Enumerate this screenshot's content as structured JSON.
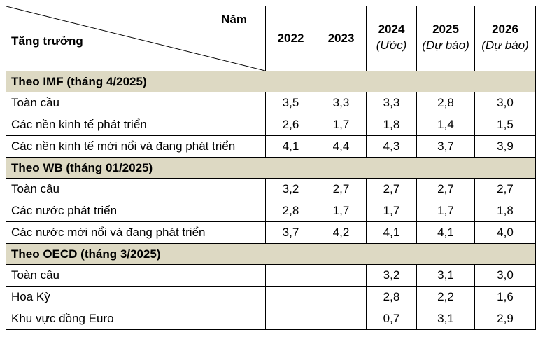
{
  "header": {
    "corner_top": "Năm",
    "corner_bottom": "Tăng trưởng",
    "years": [
      {
        "year": "2022",
        "note": ""
      },
      {
        "year": "2023",
        "note": ""
      },
      {
        "year": "2024",
        "note": "(Ước)"
      },
      {
        "year": "2025",
        "note": "(Dự báo)"
      },
      {
        "year": "2026",
        "note": "(Dự báo)"
      }
    ]
  },
  "sections": [
    {
      "title": "Theo IMF (tháng 4/2025)",
      "rows": [
        {
          "label": "Toàn cầu",
          "values": [
            "3,5",
            "3,3",
            "3,3",
            "2,8",
            "3,0"
          ]
        },
        {
          "label": "Các nền kinh tế phát triển",
          "values": [
            "2,6",
            "1,7",
            "1,8",
            "1,4",
            "1,5"
          ]
        },
        {
          "label": "Các nền kinh tế mới nổi và đang phát triển",
          "values": [
            "4,1",
            "4,4",
            "4,3",
            "3,7",
            "3,9"
          ]
        }
      ]
    },
    {
      "title": "Theo WB (tháng 01/2025)",
      "rows": [
        {
          "label": "Toàn cầu",
          "values": [
            "3,2",
            "2,7",
            "2,7",
            "2,7",
            "2,7"
          ]
        },
        {
          "label": "Các nước phát triển",
          "values": [
            "2,8",
            "1,7",
            "1,7",
            "1,7",
            "1,8"
          ]
        },
        {
          "label": "Các nước mới nổi và đang phát triển",
          "values": [
            "3,7",
            "4,2",
            "4,1",
            "4,1",
            "4,0"
          ]
        }
      ]
    },
    {
      "title": "Theo OECD (tháng 3/2025)",
      "rows": [
        {
          "label": "Toàn cầu",
          "values": [
            "",
            "",
            "3,2",
            "3,1",
            "3,0"
          ]
        },
        {
          "label": "Hoa Kỳ",
          "values": [
            "",
            "",
            "2,8",
            "2,2",
            "1,6"
          ]
        },
        {
          "label": "Khu vực đồng Euro",
          "values": [
            "",
            "",
            "0,7",
            "3,1",
            "2,9"
          ]
        }
      ]
    }
  ],
  "colors": {
    "section_bg": "#ddd9c3",
    "border": "#000000"
  }
}
